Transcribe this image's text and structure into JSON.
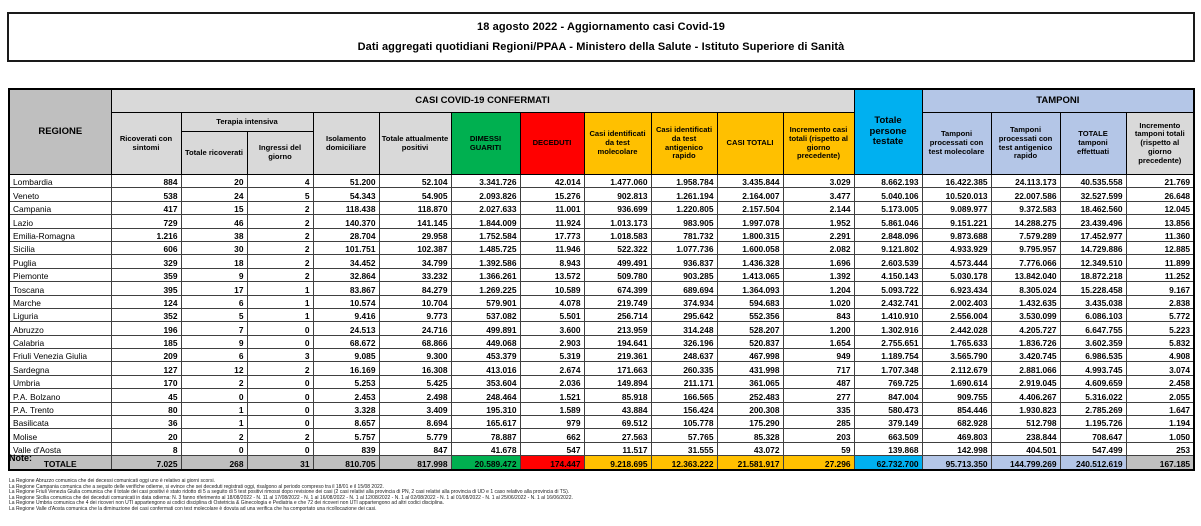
{
  "title": {
    "line1": "18 agosto 2022 - Aggiornamento casi Covid-19",
    "line2": "Dati aggregati quotidiani Regioni/PPAA - Ministero della Salute - Istituto Superiore di Sanità"
  },
  "colors": {
    "header_gray": "#bfbfbf",
    "header_light_gray": "#d9d9d9",
    "green": "#00b050",
    "red": "#ff0000",
    "gold": "#ffc000",
    "cyan": "#00b0f0",
    "periwinkle": "#b4c6e7"
  },
  "table": {
    "group_headers": {
      "casi": "CASI COVID-19 CONFERMATI",
      "tamponi": "TAMPONI",
      "terapia": "Terapia intensiva"
    },
    "columns": [
      "REGIONE",
      "Ricoverati con sintomi",
      "Totale ricoverati",
      "Ingressi del giorno",
      "Isolamento domiciliare",
      "Totale attualmente positivi",
      "DIMESSI GUARITI",
      "DECEDUTI",
      "Casi identificati da test molecolare",
      "Casi identificati da test antigenico rapido",
      "CASI TOTALI",
      "Incremento casi totali (rispetto al giorno precedente)",
      "Totale persone testate",
      "Tamponi processati con test molecolare",
      "Tamponi processati con test antigenico rapido",
      "TOTALE tamponi effettuati",
      "Incremento tamponi totali (rispetto al giorno precedente)"
    ],
    "rows": [
      {
        "region": "Lombardia",
        "values": [
          "884",
          "20",
          "4",
          "51.200",
          "52.104",
          "3.341.726",
          "42.014",
          "1.477.060",
          "1.958.784",
          "3.435.844",
          "3.029",
          "8.662.193",
          "16.422.385",
          "24.113.173",
          "40.535.558",
          "21.769"
        ]
      },
      {
        "region": "Veneto",
        "values": [
          "538",
          "24",
          "5",
          "54.343",
          "54.905",
          "2.093.826",
          "15.276",
          "902.813",
          "1.261.194",
          "2.164.007",
          "3.477",
          "5.040.106",
          "10.520.013",
          "22.007.586",
          "32.527.599",
          "26.648"
        ]
      },
      {
        "region": "Campania",
        "values": [
          "417",
          "15",
          "2",
          "118.438",
          "118.870",
          "2.027.633",
          "11.001",
          "936.699",
          "1.220.805",
          "2.157.504",
          "2.144",
          "5.173.005",
          "9.089.977",
          "9.372.583",
          "18.462.560",
          "12.045"
        ]
      },
      {
        "region": "Lazio",
        "values": [
          "729",
          "46",
          "2",
          "140.370",
          "141.145",
          "1.844.009",
          "11.924",
          "1.013.173",
          "983.905",
          "1.997.078",
          "1.952",
          "5.861.046",
          "9.151.221",
          "14.288.275",
          "23.439.496",
          "13.856"
        ]
      },
      {
        "region": "Emilia-Romagna",
        "values": [
          "1.216",
          "38",
          "2",
          "28.704",
          "29.958",
          "1.752.584",
          "17.773",
          "1.018.583",
          "781.732",
          "1.800.315",
          "2.291",
          "2.848.096",
          "9.873.688",
          "7.579.289",
          "17.452.977",
          "11.360"
        ]
      },
      {
        "region": "Sicilia",
        "values": [
          "606",
          "30",
          "2",
          "101.751",
          "102.387",
          "1.485.725",
          "11.946",
          "522.322",
          "1.077.736",
          "1.600.058",
          "2.082",
          "9.121.802",
          "4.933.929",
          "9.795.957",
          "14.729.886",
          "12.885"
        ]
      },
      {
        "region": "Puglia",
        "values": [
          "329",
          "18",
          "2",
          "34.452",
          "34.799",
          "1.392.586",
          "8.943",
          "499.491",
          "936.837",
          "1.436.328",
          "1.696",
          "2.603.539",
          "4.573.444",
          "7.776.066",
          "12.349.510",
          "11.899"
        ]
      },
      {
        "region": "Piemonte",
        "values": [
          "359",
          "9",
          "2",
          "32.864",
          "33.232",
          "1.366.261",
          "13.572",
          "509.780",
          "903.285",
          "1.413.065",
          "1.392",
          "4.150.143",
          "5.030.178",
          "13.842.040",
          "18.872.218",
          "11.252"
        ]
      },
      {
        "region": "Toscana",
        "values": [
          "395",
          "17",
          "1",
          "83.867",
          "84.279",
          "1.269.225",
          "10.589",
          "674.399",
          "689.694",
          "1.364.093",
          "1.204",
          "5.093.722",
          "6.923.434",
          "8.305.024",
          "15.228.458",
          "9.167"
        ]
      },
      {
        "region": "Marche",
        "values": [
          "124",
          "6",
          "1",
          "10.574",
          "10.704",
          "579.901",
          "4.078",
          "219.749",
          "374.934",
          "594.683",
          "1.020",
          "2.432.741",
          "2.002.403",
          "1.432.635",
          "3.435.038",
          "2.838"
        ]
      },
      {
        "region": "Liguria",
        "values": [
          "352",
          "5",
          "1",
          "9.416",
          "9.773",
          "537.082",
          "5.501",
          "256.714",
          "295.642",
          "552.356",
          "843",
          "1.410.910",
          "2.556.004",
          "3.530.099",
          "6.086.103",
          "5.772"
        ]
      },
      {
        "region": "Abruzzo",
        "values": [
          "196",
          "7",
          "0",
          "24.513",
          "24.716",
          "499.891",
          "3.600",
          "213.959",
          "314.248",
          "528.207",
          "1.200",
          "1.302.916",
          "2.442.028",
          "4.205.727",
          "6.647.755",
          "5.223"
        ]
      },
      {
        "region": "Calabria",
        "values": [
          "185",
          "9",
          "0",
          "68.672",
          "68.866",
          "449.068",
          "2.903",
          "194.641",
          "326.196",
          "520.837",
          "1.654",
          "2.755.651",
          "1.765.633",
          "1.836.726",
          "3.602.359",
          "5.832"
        ]
      },
      {
        "region": "Friuli Venezia Giulia",
        "values": [
          "209",
          "6",
          "3",
          "9.085",
          "9.300",
          "453.379",
          "5.319",
          "219.361",
          "248.637",
          "467.998",
          "949",
          "1.189.754",
          "3.565.790",
          "3.420.745",
          "6.986.535",
          "4.908"
        ]
      },
      {
        "region": "Sardegna",
        "values": [
          "127",
          "12",
          "2",
          "16.169",
          "16.308",
          "413.016",
          "2.674",
          "171.663",
          "260.335",
          "431.998",
          "717",
          "1.707.348",
          "2.112.679",
          "2.881.066",
          "4.993.745",
          "3.074"
        ]
      },
      {
        "region": "Umbria",
        "values": [
          "170",
          "2",
          "0",
          "5.253",
          "5.425",
          "353.604",
          "2.036",
          "149.894",
          "211.171",
          "361.065",
          "487",
          "769.725",
          "1.690.614",
          "2.919.045",
          "4.609.659",
          "2.458"
        ]
      },
      {
        "region": "P.A. Bolzano",
        "values": [
          "45",
          "0",
          "0",
          "2.453",
          "2.498",
          "248.464",
          "1.521",
          "85.918",
          "166.565",
          "252.483",
          "277",
          "847.004",
          "909.755",
          "4.406.267",
          "5.316.022",
          "2.055"
        ]
      },
      {
        "region": "P.A. Trento",
        "values": [
          "80",
          "1",
          "0",
          "3.328",
          "3.409",
          "195.310",
          "1.589",
          "43.884",
          "156.424",
          "200.308",
          "335",
          "580.473",
          "854.446",
          "1.930.823",
          "2.785.269",
          "1.647"
        ]
      },
      {
        "region": "Basilicata",
        "values": [
          "36",
          "1",
          "0",
          "8.657",
          "8.694",
          "165.617",
          "979",
          "69.512",
          "105.778",
          "175.290",
          "285",
          "379.149",
          "682.928",
          "512.798",
          "1.195.726",
          "1.194"
        ]
      },
      {
        "region": "Molise",
        "values": [
          "20",
          "2",
          "2",
          "5.757",
          "5.779",
          "78.887",
          "662",
          "27.563",
          "57.765",
          "85.328",
          "203",
          "663.509",
          "469.803",
          "238.844",
          "708.647",
          "1.050"
        ]
      },
      {
        "region": "Valle d'Aosta",
        "values": [
          "8",
          "0",
          "0",
          "839",
          "847",
          "41.678",
          "547",
          "11.517",
          "31.555",
          "43.072",
          "59",
          "139.868",
          "142.998",
          "404.501",
          "547.499",
          "253"
        ]
      }
    ],
    "total": {
      "label": "TOTALE",
      "values": [
        "7.025",
        "268",
        "31",
        "810.705",
        "817.998",
        "20.589.472",
        "174.447",
        "9.218.695",
        "12.363.222",
        "21.581.917",
        "27.296",
        "62.732.700",
        "95.713.350",
        "144.799.269",
        "240.512.619",
        "167.185"
      ]
    }
  },
  "notes": {
    "label": "Note:",
    "items": [
      "La Regione Abruzzo comunica che dei decessi comunicati oggi uno è relativo ai giorni scorsi.",
      "La Regione Campania comunica che a seguito delle verifiche odierne, si evince che sei deceduti registrati oggi, risalgono al periodo compreso tra il 18/01 e il 15/08 2022.",
      "La Regione Friuli Venezia Giulia comunica che il totale dei casi positivi è stato ridotto di 5 a seguito di 5 test positivi rimossi dopo revisione dei casi (2 casi relativi alla provincia di PN, 2 casi relativi alla provincia di UD e 1 caso relativo alla provincia di TS).",
      "La Regione Sicilia comunica che dei deceduti comunicati in data odierna: N. 3 fanno riferimento al 18/08/2022 - N. 11 al 17/08/2022 - N. 1 al 16/08/2022 - N. 1 al 12/08/2022 - N. 1 al 02/08/2022 - N. 1 al 01/08/2022 - N. 1 al 25/06/2022 - N. 1 al 16/06/2022.",
      "La Regione Umbria comunica che 4 dei ricoveri non UTI appartengono ai codici disciplina di Ostetricia & Ginecologia e Pediatria e che 72 dei ricoveri non UTI appartengono ad altri codici disciplina.",
      "La Regione Valle d'Aosta comunica che la diminuzione dei casi confermati con test molecolare è dovuta ad una verifica che ha comportato una ricollocazione dei casi."
    ]
  }
}
